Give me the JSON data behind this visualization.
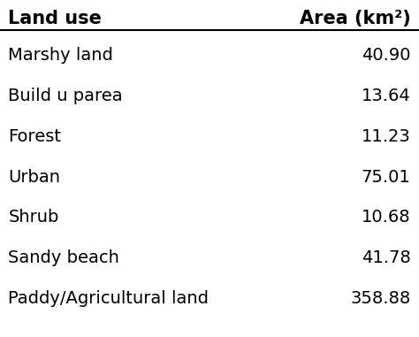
{
  "col1_header": "Land use",
  "col2_header": "Area (km²)",
  "rows": [
    [
      "Marshy land",
      "40.90"
    ],
    [
      "Build u parea",
      "13.64"
    ],
    [
      "Forest",
      "11.23"
    ],
    [
      "Urban",
      "75.01"
    ],
    [
      "Shrub",
      "10.68"
    ],
    [
      "Sandy beach",
      "41.78"
    ],
    [
      "Paddy/Agricultural land",
      "358.88"
    ]
  ],
  "background_color": "#ffffff",
  "text_color": "#000000",
  "header_fontsize": 15,
  "body_fontsize": 14,
  "fig_width": 4.74,
  "fig_height": 3.81,
  "dpi": 100
}
